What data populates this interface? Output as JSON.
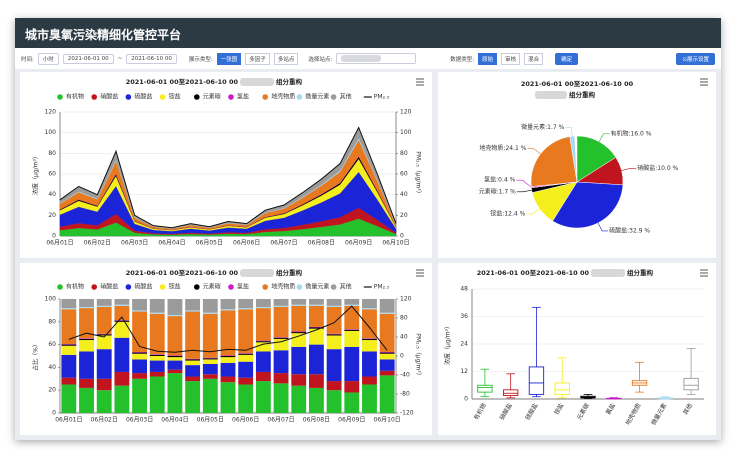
{
  "header": {
    "title": "城市臭氧污染精细化管控平台"
  },
  "toolbar": {
    "time_label": "时间:",
    "interval": "小时",
    "start": "2021-06-01 00",
    "separator": "~",
    "end": "2021-06-10 00",
    "display_label": "展示类型:",
    "display_options": [
      "一张图",
      "多因子",
      "多站点"
    ],
    "station_label": "选择站点:",
    "data_label": "数据类型:",
    "data_options": [
      "原始",
      "审核",
      "混合"
    ],
    "confirm": "确定",
    "settings": "⊙展示设置"
  },
  "chart_data": [
    {
      "type": "area",
      "stacked": true,
      "title": "2021-06-01 00至2021-06-10 00",
      "subtitle": "组分重构",
      "y_label": "浓度（μg/m³）",
      "y2_label": "PM₂.₅（μg/m³）",
      "grid": true,
      "categories": [
        "06月01日",
        null,
        "06月02日",
        null,
        "06月03日",
        null,
        "06月04日",
        null,
        "06月05日",
        null,
        "06月06日",
        null,
        "06月07日",
        null,
        "06月08日",
        null,
        "06月09日",
        null,
        "06月10日"
      ],
      "ylim": [
        0,
        120
      ],
      "yticks": [
        0,
        20,
        40,
        60,
        80,
        100,
        120
      ],
      "y2lim": [
        0,
        120
      ],
      "y2ticks": [
        0,
        20,
        40,
        60,
        80,
        100,
        120
      ],
      "series": [
        {
          "name": "有机物",
          "color": "#25c12c",
          "values": [
            5.6,
            7.7,
            6.4,
            13.1,
            3.2,
            1.6,
            1.3,
            1.9,
            1.4,
            2.2,
            1.9,
            4.0,
            4.8,
            6.7,
            8.8,
            11.2,
            16.8,
            9.6,
            1.9
          ]
        },
        {
          "name": "硝酸盐",
          "color": "#c0151f",
          "values": [
            3.5,
            4.8,
            4.0,
            8.2,
            2.0,
            1.0,
            0.8,
            1.2,
            0.9,
            1.4,
            1.2,
            2.5,
            3.0,
            4.2,
            5.5,
            7.0,
            10.5,
            6.0,
            1.2
          ]
        },
        {
          "name": "硫酸盐",
          "color": "#1b24d6",
          "values": [
            11.6,
            15.8,
            13.2,
            27.1,
            6.6,
            3.3,
            2.6,
            4.0,
            3.0,
            4.6,
            4.0,
            8.3,
            9.9,
            13.9,
            18.2,
            23.1,
            34.7,
            19.8,
            4.0
          ]
        },
        {
          "name": "铵盐",
          "color": "#f4ee1d",
          "values": [
            4.2,
            5.8,
            4.8,
            9.8,
            2.4,
            1.2,
            1.0,
            1.4,
            1.1,
            1.7,
            1.4,
            3.0,
            3.6,
            5.0,
            6.6,
            8.4,
            12.6,
            7.2,
            1.4
          ]
        },
        {
          "name": "元素碳",
          "color": "#000000",
          "values": [
            0.7,
            1.0,
            0.8,
            1.6,
            0.4,
            0.2,
            0.2,
            0.2,
            0.2,
            0.3,
            0.2,
            0.5,
            0.6,
            0.8,
            1.1,
            1.4,
            2.1,
            1.2,
            0.2
          ]
        },
        {
          "name": "氯盐",
          "color": "#c81ec8",
          "values": [
            0.2,
            0.2,
            0.2,
            0.4,
            0.1,
            0.1,
            0,
            0.1,
            0,
            0.1,
            0.1,
            0.1,
            0.2,
            0.2,
            0.3,
            0.4,
            0.5,
            0.3,
            0.1
          ]
        },
        {
          "name": "地壳物质",
          "color": "#e8791f",
          "values": [
            5.3,
            7.2,
            6.0,
            12.3,
            3.0,
            1.5,
            1.2,
            1.8,
            1.4,
            2.1,
            1.8,
            3.8,
            4.5,
            6.3,
            8.3,
            10.5,
            15.8,
            9.0,
            1.8
          ]
        },
        {
          "name": "微量元素",
          "color": "#a9d9f0",
          "values": [
            0.5,
            0.7,
            0.6,
            1.2,
            0.3,
            0.2,
            0.1,
            0.2,
            0.1,
            0.2,
            0.2,
            0.4,
            0.5,
            0.6,
            0.8,
            1.1,
            1.6,
            0.9,
            0.2
          ]
        },
        {
          "name": "其他",
          "color": "#9b9b9b",
          "values": [
            3.5,
            4.8,
            4.0,
            8.2,
            2.0,
            1.0,
            0.8,
            1.2,
            0.9,
            1.4,
            1.2,
            2.5,
            3.0,
            4.2,
            5.5,
            7.0,
            10.5,
            6.0,
            1.2
          ]
        },
        {
          "name": "PM₂.₅",
          "color": "#111111",
          "axis": "y2",
          "values": [
            35,
            48,
            40,
            82,
            20,
            10,
            8,
            12,
            9,
            14,
            12,
            25,
            30,
            42,
            55,
            70,
            105,
            60,
            12
          ]
        }
      ]
    },
    {
      "type": "pie",
      "title": "2021-06-01 00至2021-06-10 00",
      "subtitle": "组分重构",
      "categories": [
        "有机物",
        "硝酸盐",
        "硫酸盐",
        "铵盐",
        "元素碳",
        "氯盐",
        "地壳物质",
        "微量元素"
      ],
      "values": [
        16.0,
        10.0,
        32.9,
        12.4,
        1.7,
        0.4,
        24.1,
        1.7
      ],
      "value_labels": [
        "有机物:16.0 %",
        "硝酸盐:10.0 %",
        "硫酸盐:32.9 %",
        "铵盐:12.4 %",
        "元素碳:1.7 %",
        "氯盐:0.4 %",
        "地壳物质:24.1 %",
        "微量元素:1.7 %"
      ],
      "colors": [
        "#25c12c",
        "#c0151f",
        "#1b24d6",
        "#f4ee1d",
        "#000000",
        "#c81ec8",
        "#e8791f",
        "#a9d9f0"
      ]
    },
    {
      "type": "bar",
      "stacked": true,
      "title": "2021-06-01 00至2021-06-10 00",
      "subtitle": "组分重构",
      "y_label": "占比（%）",
      "y2_label": "PM₂.₅（μg/m³）",
      "grid": false,
      "categories": [
        "06月01日",
        null,
        "06月02日",
        null,
        "06月03日",
        null,
        "06月04日",
        null,
        "06月05日",
        null,
        "06月06日",
        null,
        "06月07日",
        null,
        "06月08日",
        null,
        "06月09日",
        null,
        "06月10日"
      ],
      "ylim": [
        0,
        100
      ],
      "yticks": [
        0,
        20,
        40,
        60,
        80,
        100
      ],
      "y2lim": [
        -120,
        120
      ],
      "y2ticks": [
        -120,
        -80,
        -40,
        0,
        40,
        80,
        120
      ],
      "series": [
        {
          "name": "有机物",
          "color": "#25c12c",
          "values": [
            25,
            22,
            20,
            24,
            30,
            32,
            35,
            28,
            30,
            27,
            25,
            28,
            26,
            24,
            22,
            20,
            18,
            25,
            33
          ]
        },
        {
          "name": "硝酸盐",
          "color": "#c0151f",
          "values": [
            6,
            8,
            10,
            12,
            5,
            4,
            3,
            4,
            4,
            5,
            6,
            8,
            9,
            10,
            12,
            8,
            10,
            7,
            4
          ]
        },
        {
          "name": "硫酸盐",
          "color": "#1b24d6",
          "values": [
            20,
            24,
            26,
            30,
            12,
            10,
            8,
            10,
            9,
            12,
            14,
            18,
            20,
            24,
            26,
            28,
            30,
            22,
            10
          ]
        },
        {
          "name": "铵盐",
          "color": "#f4ee1d",
          "values": [
            8,
            10,
            12,
            14,
            5,
            4,
            3,
            4,
            4,
            5,
            6,
            8,
            10,
            12,
            14,
            12,
            14,
            10,
            5
          ]
        },
        {
          "name": "元素碳",
          "color": "#000000",
          "values": [
            1,
            1,
            1,
            1,
            1,
            1,
            1,
            1,
            1,
            1,
            1,
            1,
            1,
            1,
            1,
            1,
            1,
            1,
            1
          ]
        },
        {
          "name": "氯盐",
          "color": "#c81ec8",
          "values": [
            0.5,
            0.5,
            0.5,
            0.5,
            0.5,
            0.5,
            0.5,
            0.5,
            0.5,
            0.5,
            0.5,
            0.5,
            0.5,
            0.5,
            0.5,
            0.5,
            0.5,
            0.5,
            0.5
          ]
        },
        {
          "name": "地壳物质",
          "color": "#e8791f",
          "values": [
            30.5,
            26.5,
            23.5,
            12.5,
            35.5,
            35.5,
            34.5,
            41.5,
            38.5,
            39.5,
            38.5,
            28.5,
            26.5,
            22.5,
            18.5,
            23.5,
            20.5,
            25.5,
            33.5
          ]
        },
        {
          "name": "微量元素",
          "color": "#a9d9f0",
          "values": [
            1,
            1,
            1,
            1,
            1,
            1,
            1,
            1,
            1,
            1,
            1,
            1,
            1,
            1,
            1,
            1,
            1,
            1,
            1
          ]
        },
        {
          "name": "其他",
          "color": "#9b9b9b",
          "values": [
            8,
            7,
            6,
            5,
            10,
            12,
            14,
            10,
            12,
            9,
            8,
            7,
            6,
            5,
            5,
            6,
            5,
            8,
            12
          ]
        },
        {
          "name": "PM₂.₅",
          "color": "#111111",
          "axis": "y2",
          "values": [
            35,
            48,
            40,
            82,
            20,
            10,
            8,
            12,
            9,
            14,
            12,
            25,
            30,
            42,
            55,
            70,
            105,
            60,
            12
          ]
        }
      ]
    },
    {
      "type": "box",
      "title": "2021-06-01 00至2021-06-10 00",
      "subtitle": "组分重构",
      "y_label": "浓度（μg/m³）",
      "grid": true,
      "categories": [
        "有机物",
        "硝酸盐",
        "硫酸盐",
        "铵盐",
        "元素碳",
        "氯盐",
        "地壳物质",
        "微量元素",
        "其他"
      ],
      "colors": [
        "#25c12c",
        "#c0151f",
        "#1b24d6",
        "#f4ee1d",
        "#000000",
        "#c81ec8",
        "#e8791f",
        "#a9d9f0",
        "#9b9b9b"
      ],
      "ylim": [
        0,
        48
      ],
      "yticks": [
        0,
        12,
        24,
        36,
        48
      ],
      "min": [
        1,
        0.5,
        1,
        0.5,
        0.2,
        0,
        3,
        0,
        2
      ],
      "q1": [
        3,
        1.5,
        2,
        2,
        0.5,
        0.1,
        6,
        0.1,
        4
      ],
      "median": [
        5,
        2.5,
        7,
        4,
        0.8,
        0.2,
        7,
        0.3,
        6
      ],
      "q3": [
        6,
        4,
        14,
        7,
        1.2,
        0.3,
        8,
        0.5,
        9
      ],
      "max": [
        13,
        11,
        40,
        18,
        2,
        0.6,
        16,
        1,
        22
      ]
    }
  ]
}
